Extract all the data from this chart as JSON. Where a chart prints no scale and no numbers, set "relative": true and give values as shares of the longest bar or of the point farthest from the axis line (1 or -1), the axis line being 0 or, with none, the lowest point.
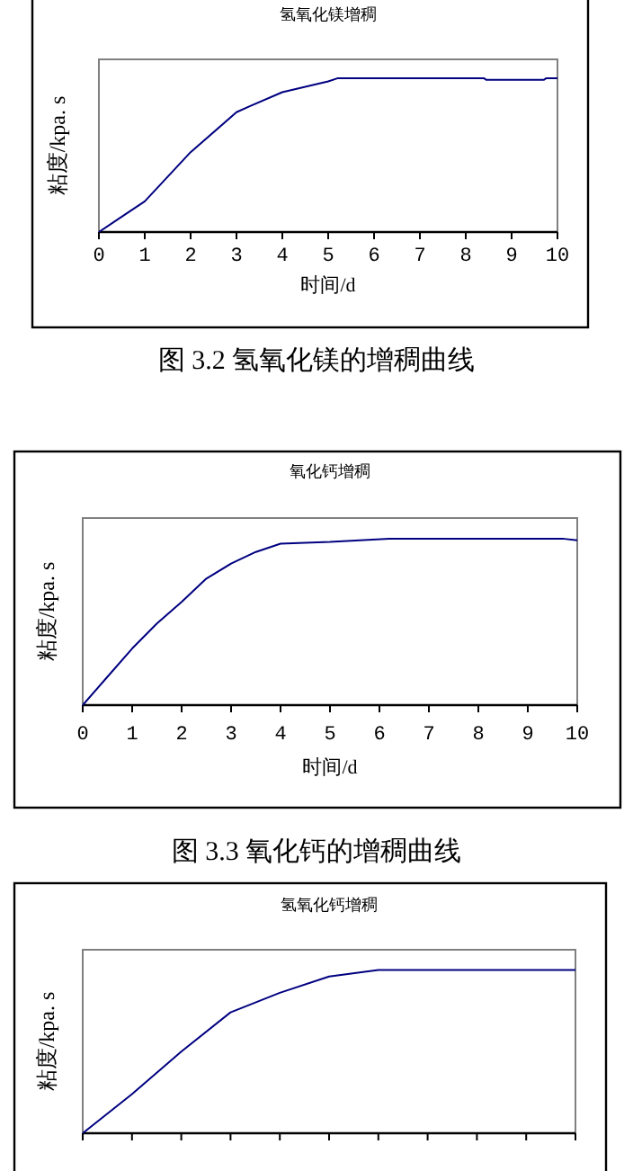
{
  "chart_data": [
    {
      "type": "line",
      "title": "氢氧化镁增稠",
      "xlabel": "时间/d",
      "ylabel": "粘度/kpa. s",
      "annotations": [
        "图 3.2 氢氧化镁的增稠曲线"
      ],
      "relative": true,
      "tick_labels": "x",
      "xlim": [
        0,
        10
      ],
      "xticks": [
        0,
        1,
        2,
        3,
        4,
        5,
        6,
        7,
        8,
        9,
        10
      ],
      "x": [
        0,
        0.5,
        1,
        2,
        3,
        3.3,
        4,
        5,
        5.2,
        8.4,
        8.45,
        9.7,
        9.75,
        10
      ],
      "series": [
        {
          "color": "#000080",
          "values": [
            0,
            0.1,
            0.2,
            0.52,
            0.78,
            0.82,
            0.91,
            0.98,
            1,
            1,
            0.99,
            0.99,
            1,
            1
          ]
        }
      ]
    },
    {
      "type": "line",
      "title": "氧化钙增稠",
      "xlabel": "时间/d",
      "ylabel": "粘度/kpa. s",
      "annotations": [
        "图 3.3 氧化钙的增稠曲线"
      ],
      "relative": true,
      "tick_labels": "x",
      "xlim": [
        0,
        10
      ],
      "xticks": [
        0,
        1,
        2,
        3,
        4,
        5,
        6,
        7,
        8,
        9,
        10
      ],
      "x": [
        0,
        0.5,
        1,
        1.5,
        2,
        2.5,
        3,
        3.5,
        4,
        5,
        6.2,
        9.7,
        10
      ],
      "series": [
        {
          "color": "#000080",
          "values": [
            0,
            0.17,
            0.34,
            0.49,
            0.62,
            0.76,
            0.85,
            0.92,
            0.97,
            0.98,
            1,
            1,
            0.99
          ]
        }
      ]
    },
    {
      "type": "line",
      "title": "氢氧化钙增稠",
      "ylabel": "粘度/kpa. s",
      "relative": true,
      "tick_labels": false,
      "categories": [
        null,
        null,
        null,
        null,
        null,
        null,
        null,
        null,
        null,
        null,
        null
      ],
      "series": [
        {
          "color": "#000080",
          "values": [
            0,
            0.24,
            0.5,
            0.74,
            0.86,
            0.96,
            1,
            1,
            1,
            1,
            1
          ]
        }
      ]
    }
  ]
}
